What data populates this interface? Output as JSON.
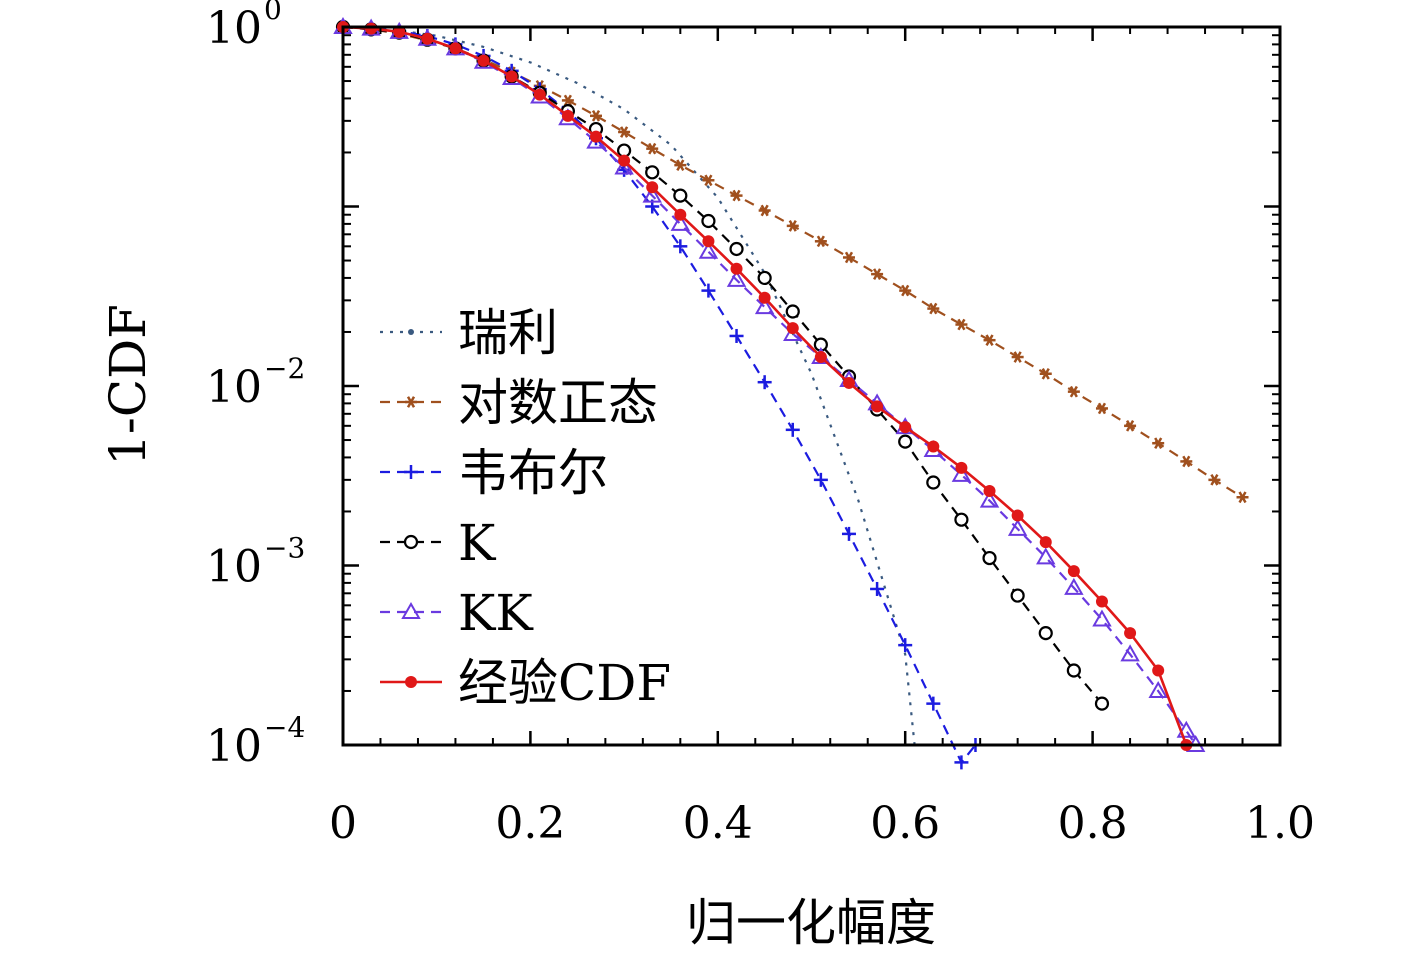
{
  "chart_data": {
    "type": "line",
    "xlabel": "归一化幅度",
    "ylabel": "1-CDF",
    "xlim": [
      0,
      1.0
    ],
    "ylim": [
      0.0001,
      1
    ],
    "y_scale": "log",
    "grid": false,
    "legend_position": "center-left",
    "x_ticks": [
      "0",
      "0.2",
      "0.4",
      "0.6",
      "0.8",
      "1.0"
    ],
    "y_ticks": [
      {
        "base": "10",
        "exp": "0"
      },
      {
        "base": "10",
        "exp": "−2"
      },
      {
        "base": "10",
        "exp": "−3"
      },
      {
        "base": "10",
        "exp": "−4"
      }
    ],
    "series": [
      {
        "name": "瑞利",
        "color": "#3a5a80",
        "dash": "3,7",
        "marker": "dot",
        "x": [
          0,
          0.05,
          0.1,
          0.15,
          0.2,
          0.25,
          0.3,
          0.35,
          0.4,
          0.45,
          0.5,
          0.55,
          0.6,
          0.61
        ],
        "y": [
          1,
          0.972,
          0.893,
          0.775,
          0.635,
          0.487,
          0.348,
          0.22,
          0.112,
          0.0425,
          0.0117,
          0.0023,
          0.00032,
          0.0001
        ]
      },
      {
        "name": "对数正态",
        "color": "#a0501e",
        "dash": "10,7",
        "marker": "asterisk",
        "x": [
          0,
          0.03,
          0.06,
          0.09,
          0.12,
          0.15,
          0.18,
          0.21,
          0.24,
          0.27,
          0.3,
          0.33,
          0.36,
          0.39,
          0.42,
          0.45,
          0.48,
          0.51,
          0.54,
          0.57,
          0.6,
          0.63,
          0.66,
          0.69,
          0.72,
          0.75,
          0.78,
          0.81,
          0.84,
          0.87,
          0.9,
          0.93,
          0.96
        ],
        "y": [
          1,
          0.97,
          0.92,
          0.84,
          0.76,
          0.66,
          0.56,
          0.47,
          0.39,
          0.32,
          0.26,
          0.21,
          0.17,
          0.14,
          0.115,
          0.095,
          0.078,
          0.064,
          0.052,
          0.042,
          0.034,
          0.027,
          0.022,
          0.018,
          0.0145,
          0.0117,
          0.0093,
          0.0075,
          0.006,
          0.0048,
          0.0038,
          0.003,
          0.0024
        ]
      },
      {
        "name": "韦布尔",
        "color": "#1c1ce0",
        "dash": "10,7",
        "marker": "plus",
        "x": [
          0,
          0.03,
          0.06,
          0.09,
          0.12,
          0.15,
          0.18,
          0.21,
          0.24,
          0.27,
          0.3,
          0.33,
          0.36,
          0.39,
          0.42,
          0.45,
          0.48,
          0.51,
          0.54,
          0.57,
          0.6,
          0.63,
          0.66,
          0.675
        ],
        "y": [
          1,
          0.98,
          0.95,
          0.89,
          0.8,
          0.69,
          0.57,
          0.45,
          0.34,
          0.24,
          0.16,
          0.1,
          0.06,
          0.034,
          0.019,
          0.0105,
          0.0057,
          0.003,
          0.0015,
          0.00074,
          0.00036,
          0.00017,
          8e-05,
          0.0001
        ]
      },
      {
        "name": "K",
        "color": "#000000",
        "dash": "10,7",
        "marker": "circle",
        "x": [
          0,
          0.03,
          0.06,
          0.09,
          0.12,
          0.15,
          0.18,
          0.21,
          0.24,
          0.27,
          0.3,
          0.33,
          0.36,
          0.39,
          0.42,
          0.45,
          0.48,
          0.51,
          0.54,
          0.57,
          0.6,
          0.63,
          0.66,
          0.69,
          0.72,
          0.75,
          0.78,
          0.81
        ],
        "y": [
          1,
          0.97,
          0.93,
          0.85,
          0.76,
          0.65,
          0.53,
          0.43,
          0.34,
          0.27,
          0.205,
          0.155,
          0.115,
          0.083,
          0.058,
          0.04,
          0.026,
          0.017,
          0.0113,
          0.0074,
          0.0049,
          0.0029,
          0.0018,
          0.0011,
          0.00068,
          0.00042,
          0.00026,
          0.00017
        ]
      },
      {
        "name": "KK",
        "color": "#6a3ae0",
        "dash": "10,7",
        "marker": "triangle",
        "x": [
          0,
          0.03,
          0.06,
          0.09,
          0.12,
          0.15,
          0.18,
          0.21,
          0.24,
          0.27,
          0.3,
          0.33,
          0.36,
          0.39,
          0.42,
          0.45,
          0.48,
          0.51,
          0.54,
          0.57,
          0.6,
          0.63,
          0.66,
          0.69,
          0.72,
          0.75,
          0.78,
          0.81,
          0.84,
          0.87,
          0.9,
          0.91
        ],
        "y": [
          1,
          0.98,
          0.94,
          0.86,
          0.76,
          0.64,
          0.52,
          0.41,
          0.31,
          0.23,
          0.165,
          0.115,
          0.08,
          0.056,
          0.039,
          0.0275,
          0.0195,
          0.0145,
          0.0108,
          0.008,
          0.0059,
          0.0044,
          0.0032,
          0.0023,
          0.0016,
          0.00111,
          0.00075,
          0.0005,
          0.00032,
          0.0002,
          0.00012,
          0.0001
        ]
      },
      {
        "name": "经验CDF",
        "color": "#e01818",
        "dash": "",
        "marker": "filled-circle",
        "x": [
          0,
          0.03,
          0.06,
          0.09,
          0.12,
          0.15,
          0.18,
          0.21,
          0.24,
          0.27,
          0.3,
          0.33,
          0.36,
          0.39,
          0.42,
          0.45,
          0.48,
          0.51,
          0.54,
          0.57,
          0.6,
          0.63,
          0.66,
          0.69,
          0.72,
          0.75,
          0.78,
          0.81,
          0.84,
          0.87,
          0.9
        ],
        "y": [
          1,
          0.98,
          0.94,
          0.86,
          0.76,
          0.65,
          0.53,
          0.42,
          0.32,
          0.245,
          0.18,
          0.128,
          0.09,
          0.064,
          0.045,
          0.031,
          0.021,
          0.0145,
          0.0104,
          0.0077,
          0.0059,
          0.0046,
          0.0035,
          0.0026,
          0.0019,
          0.00135,
          0.00093,
          0.00063,
          0.00042,
          0.00026,
          0.0001
        ]
      }
    ]
  }
}
